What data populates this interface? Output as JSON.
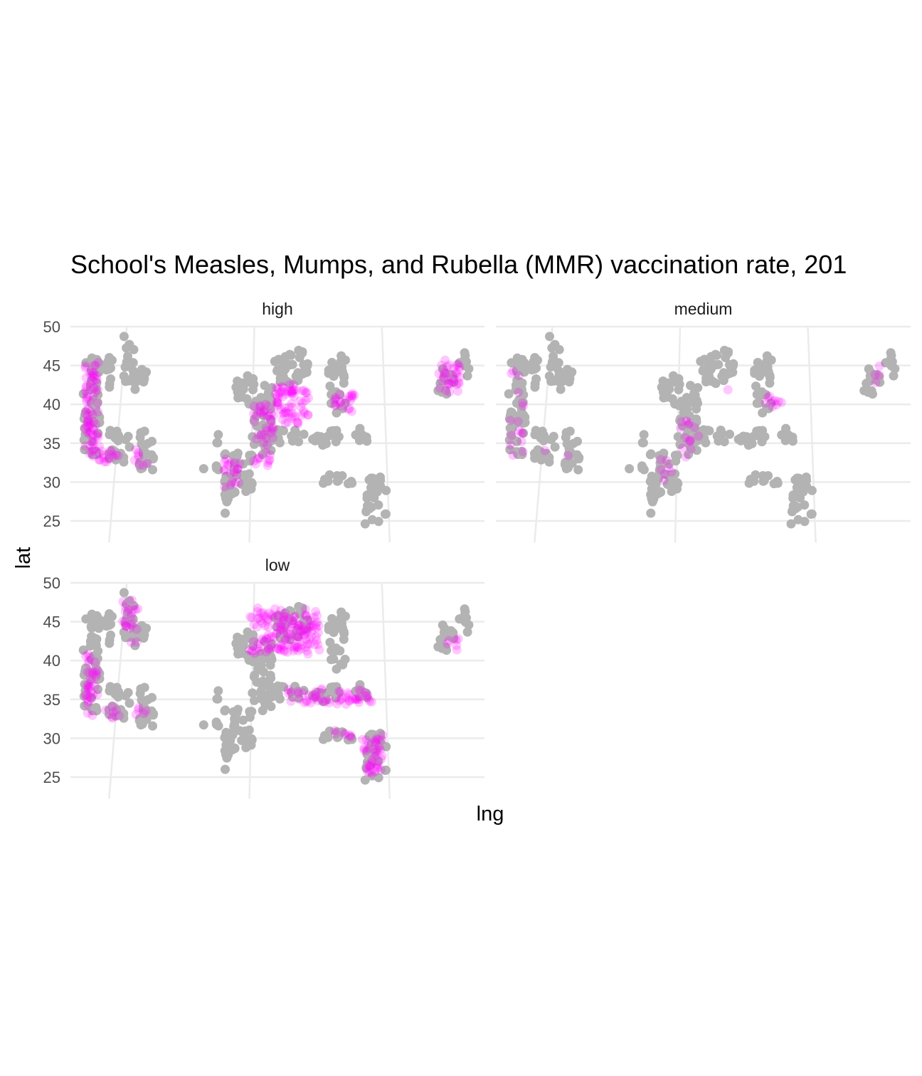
{
  "chart_data": {
    "type": "scatter",
    "title": "School's Measles, Mumps, and Rubella (MMR) vaccination rate, 201",
    "xlabel": "lng",
    "ylabel": "lat",
    "ylim": [
      24,
      50.5
    ],
    "y_ticks": [
      25,
      30,
      35,
      40,
      45,
      50
    ],
    "grid": true,
    "legend": "none",
    "colors": {
      "background_points": "#b3b3b3",
      "highlight": "#ff00ff",
      "grid": "#ebebeb"
    },
    "facets": [
      "high",
      "medium",
      "low"
    ],
    "background_regions": [
      {
        "lng": -122.5,
        "lat_range": [
          32.7,
          46.0
        ],
        "width": 2.4
      },
      {
        "lng": -121.0,
        "lat_range": [
          42.0,
          46.3
        ],
        "width": 3.0
      },
      {
        "lng": -117.2,
        "lat_range": [
          42.5,
          49.0
        ],
        "width": 1.6
      },
      {
        "lng": -115.5,
        "lat_range": [
          42.0,
          44.5
        ],
        "width": 2.4
      },
      {
        "lng": -118.5,
        "lat_range": [
          32.8,
          37.0
        ],
        "width": 3.0
      },
      {
        "lng": -114.8,
        "lat_range": [
          31.5,
          37.0
        ],
        "width": 2.4
      },
      {
        "lng": -106.8,
        "lat_range": [
          31.8,
          31.8
        ],
        "width": 0.8
      },
      {
        "lng": -104.5,
        "lat_range": [
          31.0,
          36.3
        ],
        "width": 0.8
      },
      {
        "lng": -102.8,
        "lat_range": [
          26.0,
          34.0
        ],
        "width": 1.6
      },
      {
        "lng": -100.8,
        "lat_range": [
          28.5,
          34.0
        ],
        "width": 3.0
      },
      {
        "lng": -98.2,
        "lat_range": [
          33.0,
          43.0
        ],
        "width": 3.0
      },
      {
        "lng": -100.5,
        "lat_range": [
          40.0,
          43.5
        ],
        "width": 3.0
      },
      {
        "lng": -94.0,
        "lat_range": [
          42.5,
          47.0
        ],
        "width": 5.0
      },
      {
        "lng": -87.5,
        "lat_range": [
          39.0,
          46.0
        ],
        "width": 2.4
      },
      {
        "lng": -90.0,
        "lat_range": [
          35.0,
          37.0
        ],
        "width": 14.0
      },
      {
        "lng": -87.5,
        "lat_range": [
          29.5,
          31.0
        ],
        "width": 5.0
      },
      {
        "lng": -82.0,
        "lat_range": [
          24.5,
          30.5
        ],
        "width": 3.0
      },
      {
        "lng": -72.0,
        "lat_range": [
          41.5,
          45.5
        ],
        "width": 2.4
      },
      {
        "lng": -69.5,
        "lat_range": [
          43.5,
          47.0
        ],
        "width": 1.6
      }
    ],
    "highlight_regions": {
      "high": [
        {
          "lng": -122.5,
          "lat_range": [
            32.7,
            45.8
          ],
          "width": 2.0,
          "strength": 1.0
        },
        {
          "lng": -120.0,
          "lat_range": [
            32.5,
            34.5
          ],
          "width": 3.0,
          "strength": 1.0
        },
        {
          "lng": -115.5,
          "lat_range": [
            32.0,
            34.0
          ],
          "width": 2.0,
          "strength": 0.8
        },
        {
          "lng": -109.5,
          "lat_range": [
            31.8,
            31.8
          ],
          "width": 0.4,
          "strength": 0.8
        },
        {
          "lng": -102.5,
          "lat_range": [
            29.5,
            33.0
          ],
          "width": 2.4,
          "strength": 0.9
        },
        {
          "lng": -98.0,
          "lat_range": [
            32.0,
            40.0
          ],
          "width": 3.0,
          "strength": 0.7
        },
        {
          "lng": -94.0,
          "lat_range": [
            37.5,
            42.5
          ],
          "width": 5.0,
          "strength": 1.0
        },
        {
          "lng": -86.5,
          "lat_range": [
            39.0,
            41.5
          ],
          "width": 3.0,
          "strength": 1.0
        },
        {
          "lng": -71.5,
          "lat_range": [
            41.5,
            45.5
          ],
          "width": 3.0,
          "strength": 1.0
        }
      ],
      "medium": [
        {
          "lng": -122.5,
          "lat_range": [
            33.0,
            45.0
          ],
          "width": 2.0,
          "strength": 0.25
        },
        {
          "lng": -118.5,
          "lat_range": [
            33.5,
            34.5
          ],
          "width": 0.8,
          "strength": 0.6
        },
        {
          "lng": -115.0,
          "lat_range": [
            33.0,
            34.0
          ],
          "width": 0.8,
          "strength": 0.6
        },
        {
          "lng": -101.0,
          "lat_range": [
            29.5,
            33.5
          ],
          "width": 2.4,
          "strength": 0.3
        },
        {
          "lng": -98.0,
          "lat_range": [
            33.0,
            38.0
          ],
          "width": 3.0,
          "strength": 0.35
        },
        {
          "lng": -92.0,
          "lat_range": [
            41.5,
            42.2
          ],
          "width": 1.0,
          "strength": 0.7
        },
        {
          "lng": -86.0,
          "lat_range": [
            39.5,
            41.5
          ],
          "width": 2.4,
          "strength": 0.7
        },
        {
          "lng": -71.0,
          "lat_range": [
            42.0,
            45.0
          ],
          "width": 1.6,
          "strength": 0.35
        }
      ],
      "low": [
        {
          "lng": -122.5,
          "lat_range": [
            33.0,
            41.5
          ],
          "width": 2.0,
          "strength": 0.8
        },
        {
          "lng": -119.5,
          "lat_range": [
            32.8,
            34.5
          ],
          "width": 2.0,
          "strength": 0.8
        },
        {
          "lng": -115.5,
          "lat_range": [
            32.0,
            34.0
          ],
          "width": 1.6,
          "strength": 0.6
        },
        {
          "lng": -117.0,
          "lat_range": [
            42.5,
            48.0
          ],
          "width": 2.4,
          "strength": 0.6
        },
        {
          "lng": -95.0,
          "lat_range": [
            41.0,
            46.5
          ],
          "width": 10.0,
          "strength": 1.0
        },
        {
          "lng": -88.5,
          "lat_range": [
            34.5,
            36.2
          ],
          "width": 12.0,
          "strength": 1.0
        },
        {
          "lng": -82.5,
          "lat_range": [
            25.5,
            30.5
          ],
          "width": 3.0,
          "strength": 1.0
        },
        {
          "lng": -87.0,
          "lat_range": [
            30.0,
            31.0
          ],
          "width": 3.0,
          "strength": 0.9
        },
        {
          "lng": -71.0,
          "lat_range": [
            41.5,
            43.0
          ],
          "width": 1.6,
          "strength": 0.9
        }
      ]
    }
  }
}
